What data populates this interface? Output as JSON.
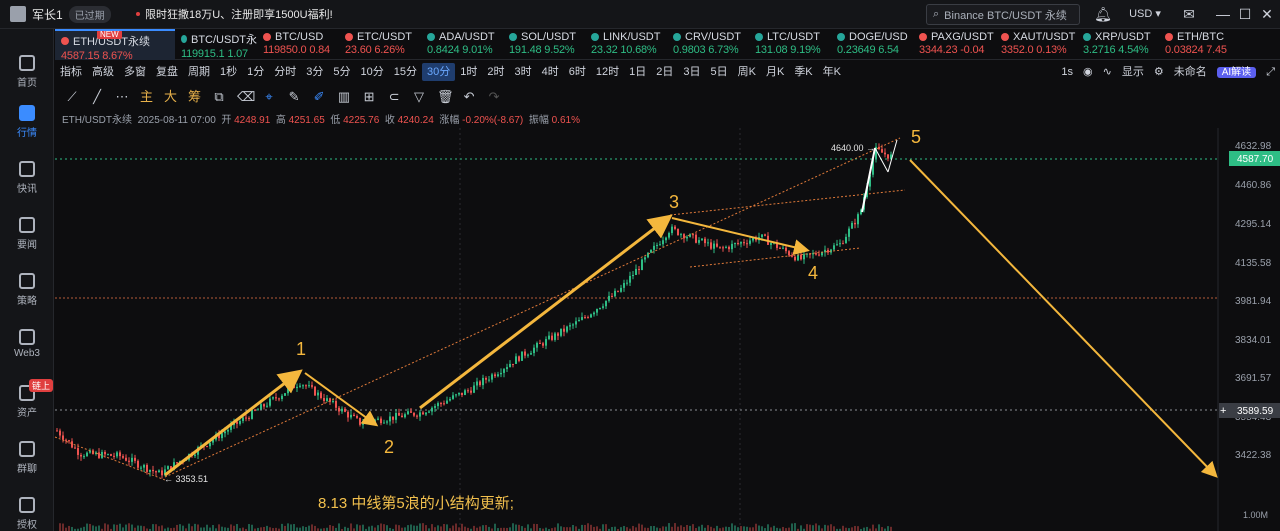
{
  "topbar": {
    "user_name": "军长1",
    "status_badge": "已过期",
    "promo": "限时狂撒18万U、注册即享1500U福利!",
    "search_placeholder": "Binance BTC/USDT 永续",
    "currency": "USD",
    "icons": [
      "bell-icon",
      "mail-icon",
      "minimize-icon",
      "maximize-icon",
      "close-icon"
    ]
  },
  "sidebar": {
    "items": [
      {
        "label": "首页",
        "icon": "home-icon"
      },
      {
        "label": "行情",
        "icon": "market-icon",
        "active": true
      },
      {
        "label": "快讯",
        "icon": "news-icon"
      },
      {
        "label": "要闻",
        "icon": "headline-icon"
      },
      {
        "label": "策略",
        "icon": "strategy-icon"
      },
      {
        "label": "Web3",
        "icon": "web3-icon"
      },
      {
        "label": "资产",
        "icon": "asset-icon",
        "badge": "链上"
      },
      {
        "label": "群聊",
        "icon": "chat-icon"
      },
      {
        "label": "授权",
        "icon": "auth-icon"
      }
    ]
  },
  "tickers": [
    {
      "name": "ETH/USDT永续",
      "price": "4587.15",
      "change": "8.67%",
      "dir": "dn",
      "active": true,
      "badge": "NEW"
    },
    {
      "name": "BTC/USDT永",
      "price": "119915.1",
      "change": "1.07",
      "dir": "up"
    },
    {
      "name": "BTC/USD",
      "price": "119850.0",
      "change": "0.84",
      "dir": "dn"
    },
    {
      "name": "ETC/USDT",
      "price": "23.60",
      "change": "6.26%",
      "dir": "dn"
    },
    {
      "name": "ADA/USDT",
      "price": "0.8424",
      "change": "9.01%",
      "dir": "up"
    },
    {
      "name": "SOL/USDT",
      "price": "191.48",
      "change": "9.52%",
      "dir": "up"
    },
    {
      "name": "LINK/USDT",
      "price": "23.32",
      "change": "10.68%",
      "dir": "up"
    },
    {
      "name": "CRV/USDT",
      "price": "0.9803",
      "change": "6.73%",
      "dir": "up"
    },
    {
      "name": "LTC/USDT",
      "price": "131.08",
      "change": "9.19%",
      "dir": "up"
    },
    {
      "name": "DOGE/USD",
      "price": "0.23649",
      "change": "6.54",
      "dir": "up"
    },
    {
      "name": "PAXG/USDT",
      "price": "3344.23",
      "change": "-0.04",
      "dir": "dn"
    },
    {
      "name": "XAUT/USDT",
      "price": "3352.0",
      "change": "0.13%",
      "dir": "dn"
    },
    {
      "name": "XRP/USDT",
      "price": "3.2716",
      "change": "4.54%",
      "dir": "up"
    },
    {
      "name": "ETH/BTC",
      "price": "0.03824",
      "change": "7.45",
      "dir": "dn"
    }
  ],
  "toolbar1": {
    "left": [
      "指标",
      "高级",
      "多窗",
      "复盘",
      "周期"
    ],
    "periods": [
      "1秒",
      "1分",
      "分时",
      "3分",
      "5分",
      "10分",
      "15分",
      "30分",
      "1时",
      "2时",
      "3时",
      "4时",
      "6时",
      "12时",
      "1日",
      "2日",
      "3日",
      "5日",
      "周K",
      "月K",
      "季K",
      "年K"
    ],
    "selected_period": "30分",
    "right": [
      "1s",
      "显示",
      "未命名",
      "AI解读"
    ]
  },
  "toolbar2": {
    "drawing_tools": [
      "ruler-icon",
      "line-icon",
      "more-icon"
    ],
    "chars": [
      "主",
      "大",
      "筹"
    ],
    "tools": [
      "copy-icon",
      "eraser-icon",
      "crosshair-icon",
      "pen-icon",
      "candles-icon",
      "measure-icon",
      "brush-icon",
      "filter-icon",
      "trash-icon",
      "undo-icon",
      "redo-icon"
    ]
  },
  "info": {
    "symbol": "ETH/USDT永续",
    "time": "2025-08-11 07:00",
    "open_label": "开",
    "open": "4248.91",
    "high_label": "高",
    "high": "4251.65",
    "low_label": "低",
    "low": "4225.76",
    "close_label": "收",
    "close": "4240.24",
    "chg_label": "涨幅",
    "chg": "-0.20%(-8.67)",
    "amp_label": "振幅",
    "amp": "0.61%"
  },
  "chart_data": {
    "type": "candlestick",
    "price_axis": [
      "4632.98",
      "4460.86",
      "4295.14",
      "4135.58",
      "3981.94",
      "3834.01",
      "3691.57",
      "3554.43",
      "3422.38"
    ],
    "current_price": "4587.70",
    "crosshair_price": "3589.59",
    "axis_bottom": "1.00M",
    "high_label": "4640.00",
    "low_label": "3353.51",
    "waves": [
      {
        "label": "1",
        "price": 3720
      },
      {
        "label": "2",
        "price": 3560
      },
      {
        "label": "3",
        "price": 4320
      },
      {
        "label": "4",
        "price": 4200
      },
      {
        "label": "5",
        "price": 4660
      }
    ],
    "grid": true
  },
  "note": "8.13 中线第5浪的小结构更新;"
}
